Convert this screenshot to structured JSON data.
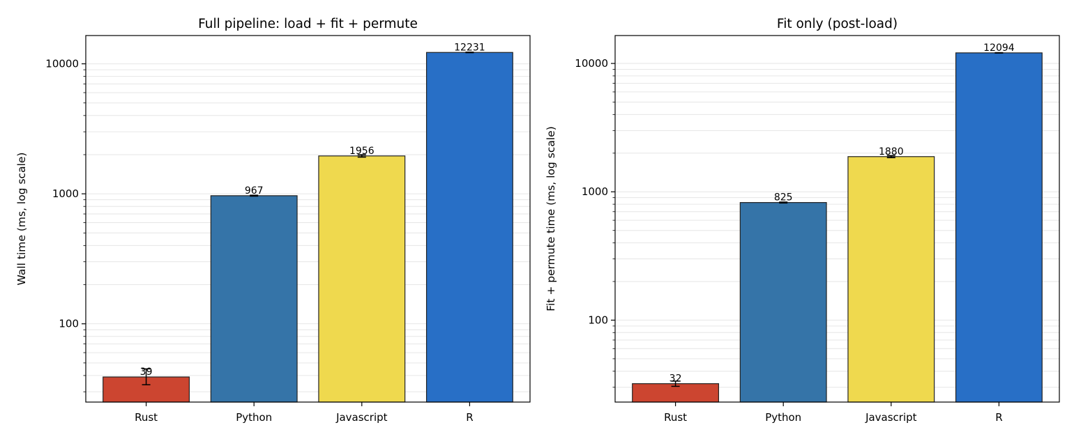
{
  "chart_data": [
    {
      "type": "bar",
      "title": "Full pipeline: load + fit + permute",
      "xlabel": "",
      "ylabel": "Wall time (ms, log scale)",
      "yscale": "log",
      "ylim": [
        25,
        16500
      ],
      "yticks": [
        100,
        1000,
        10000
      ],
      "ytick_labels": [
        "100",
        "1000",
        "10000"
      ],
      "grid": "y (major and minor)",
      "categories": [
        "Rust",
        "Python",
        "Javascript",
        "R"
      ],
      "values": [
        39,
        967,
        1956,
        12231
      ],
      "value_labels": [
        "39",
        "967",
        "1956",
        "12231"
      ],
      "error_low": [
        34,
        960,
        1915,
        12180
      ],
      "error_high": [
        45,
        975,
        2000,
        12290
      ],
      "colors": [
        "#cc4530",
        "#3574a8",
        "#efd94e",
        "#286fc6"
      ]
    },
    {
      "type": "bar",
      "title": "Fit only (post-load)",
      "xlabel": "",
      "ylabel": "Fit + permute time (ms, log scale)",
      "yscale": "log",
      "ylim": [
        23,
        16500
      ],
      "yticks": [
        100,
        1000,
        10000
      ],
      "ytick_labels": [
        "100",
        "1000",
        "10000"
      ],
      "grid": "y (major and minor)",
      "categories": [
        "Rust",
        "Python",
        "Javascript",
        "R"
      ],
      "values": [
        32,
        825,
        1880,
        12094
      ],
      "value_labels": [
        "32",
        "825",
        "1880",
        "12094"
      ],
      "error_low": [
        30.5,
        818,
        1845,
        12050
      ],
      "error_high": [
        33.5,
        832,
        1915,
        12140
      ],
      "colors": [
        "#cc4530",
        "#3574a8",
        "#efd94e",
        "#286fc6"
      ]
    }
  ]
}
